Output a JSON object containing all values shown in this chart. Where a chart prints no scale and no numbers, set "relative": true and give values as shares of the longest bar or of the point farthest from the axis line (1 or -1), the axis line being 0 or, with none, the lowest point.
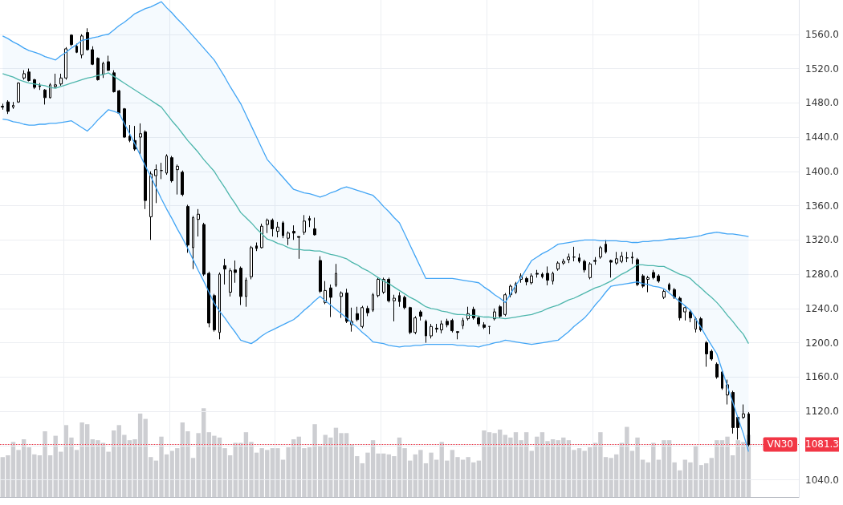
{
  "chart_data": [
    {
      "type": "candlestick",
      "categories": [
        null,
        null,
        null,
        null,
        null,
        null,
        null,
        null,
        null,
        null,
        null,
        null,
        null,
        null,
        null,
        null,
        null,
        null,
        null,
        null,
        null,
        null,
        null,
        null,
        null,
        null,
        null,
        null,
        null,
        null,
        null,
        null,
        null,
        null,
        null,
        null,
        null,
        null,
        null,
        null,
        null,
        null,
        null,
        null,
        null,
        null,
        null,
        null,
        null,
        null,
        null,
        null,
        null,
        null,
        null,
        null,
        null,
        null,
        null,
        null,
        null,
        null,
        null,
        null,
        null,
        null,
        null,
        null,
        null,
        null,
        null,
        null,
        null,
        null,
        null,
        null,
        null,
        null,
        null,
        null,
        null,
        null,
        null,
        null,
        null,
        null,
        null,
        null,
        null,
        null,
        null,
        null,
        null,
        null,
        null,
        null,
        null,
        null,
        null,
        null,
        null,
        null,
        null,
        null,
        null,
        null,
        null,
        null,
        null,
        null,
        null,
        null,
        null,
        null,
        null,
        null,
        null,
        null,
        null,
        null,
        null,
        null,
        null,
        null,
        null,
        null,
        null,
        null,
        null,
        null,
        null,
        null,
        null,
        null,
        null,
        null,
        null,
        null,
        null,
        null,
        null,
        null
      ],
      "ohlc": [
        [
          1476,
          1479,
          1472,
          1475
        ],
        [
          1481,
          1483,
          1467,
          1470
        ],
        [
          1475,
          1481,
          1473,
          1477
        ],
        [
          1481,
          1504,
          1480,
          1503
        ],
        [
          1509,
          1518,
          1507,
          1514
        ],
        [
          1516,
          1520,
          1505,
          1506
        ],
        [
          1507,
          1508,
          1496,
          1498
        ],
        [
          1500,
          1503,
          1495,
          1499
        ],
        [
          1495,
          1496,
          1478,
          1486
        ],
        [
          1486,
          1503,
          1485,
          1501
        ],
        [
          1499,
          1514,
          1497,
          1501
        ],
        [
          1502,
          1514,
          1500,
          1509
        ],
        [
          1509,
          1545,
          1507,
          1543
        ],
        [
          1559,
          1560,
          1546,
          1548
        ],
        [
          1546,
          1549,
          1538,
          1539
        ],
        [
          1536,
          1560,
          1532,
          1558
        ],
        [
          1562,
          1567,
          1541,
          1542
        ],
        [
          1542,
          1546,
          1524,
          1525
        ],
        [
          1532,
          1533,
          1506,
          1507
        ],
        [
          1513,
          1528,
          1509,
          1526
        ],
        [
          1528,
          1535,
          1517,
          1518
        ],
        [
          1515,
          1518,
          1492,
          1493
        ],
        [
          1494,
          1495,
          1466,
          1468
        ],
        [
          1473,
          1474,
          1439,
          1440
        ],
        [
          1441,
          1454,
          1434,
          1436
        ],
        [
          1436,
          1453,
          1424,
          1426
        ],
        [
          1440,
          1456,
          1419,
          1444
        ],
        [
          1446,
          1448,
          1356,
          1366
        ],
        [
          1347,
          1400,
          1320,
          1397
        ],
        [
          1395,
          1408,
          1363,
          1402
        ],
        [
          1401,
          1410,
          1391,
          1401
        ],
        [
          1398,
          1420,
          1396,
          1418
        ],
        [
          1416,
          1418,
          1387,
          1389
        ],
        [
          1402,
          1408,
          1373,
          1406
        ],
        [
          1399,
          1401,
          1371,
          1373
        ],
        [
          1359,
          1361,
          1305,
          1314
        ],
        [
          1311,
          1348,
          1286,
          1346
        ],
        [
          1344,
          1356,
          1324,
          1350
        ],
        [
          1338,
          1340,
          1278,
          1280
        ],
        [
          1281,
          1283,
          1218,
          1223
        ],
        [
          1255,
          1257,
          1213,
          1215
        ],
        [
          1212,
          1282,
          1204,
          1280
        ],
        [
          1290,
          1298,
          1268,
          1286
        ],
        [
          1259,
          1287,
          1254,
          1284
        ],
        [
          1285,
          1296,
          1270,
          1282
        ],
        [
          1287,
          1289,
          1244,
          1254
        ],
        [
          1254,
          1276,
          1242,
          1273
        ],
        [
          1277,
          1313,
          1274,
          1311
        ],
        [
          1313,
          1317,
          1307,
          1310
        ],
        [
          1311,
          1339,
          1310,
          1336
        ],
        [
          1338,
          1345,
          1328,
          1343
        ],
        [
          1343,
          1345,
          1324,
          1333
        ],
        [
          1330,
          1341,
          1323,
          1335
        ],
        [
          1340,
          1342,
          1322,
          1325
        ],
        [
          1322,
          1330,
          1314,
          1328
        ],
        [
          1330,
          1337,
          1320,
          1328
        ],
        [
          1324,
          1324,
          1298,
          1323
        ],
        [
          1329,
          1349,
          1326,
          1342
        ],
        [
          1345,
          1348,
          1335,
          1343
        ],
        [
          1333,
          1346,
          1325,
          1326
        ],
        [
          1296,
          1301,
          1258,
          1260
        ],
        [
          1247,
          1272,
          1245,
          1261
        ],
        [
          1264,
          1268,
          1230,
          1253
        ],
        [
          1267,
          1292,
          1265,
          1281
        ],
        [
          1254,
          1260,
          1229,
          1258
        ],
        [
          1258,
          1263,
          1223,
          1225
        ],
        [
          1221,
          1241,
          1213,
          1225
        ],
        [
          1234,
          1242,
          1225,
          1227
        ],
        [
          1219,
          1243,
          1217,
          1241
        ],
        [
          1240,
          1243,
          1231,
          1235
        ],
        [
          1238,
          1258,
          1236,
          1256
        ],
        [
          1255,
          1276,
          1253,
          1274
        ],
        [
          1259,
          1276,
          1257,
          1274
        ],
        [
          1274,
          1276,
          1247,
          1249
        ],
        [
          1249,
          1256,
          1225,
          1252
        ],
        [
          1255,
          1259,
          1242,
          1248
        ],
        [
          1253,
          1255,
          1239,
          1241
        ],
        [
          1241,
          1242,
          1210,
          1212
        ],
        [
          1212,
          1231,
          1210,
          1229
        ],
        [
          1236,
          1238,
          1226,
          1231
        ],
        [
          1225,
          1227,
          1200,
          1208
        ],
        [
          1208,
          1222,
          1205,
          1219
        ],
        [
          1217,
          1222,
          1212,
          1216
        ],
        [
          1215,
          1226,
          1211,
          1222
        ],
        [
          1225,
          1228,
          1218,
          1221
        ],
        [
          1226,
          1228,
          1212,
          1214
        ],
        [
          1213,
          1213,
          1204,
          1212
        ],
        [
          1220,
          1229,
          1216,
          1226
        ],
        [
          1228,
          1242,
          1226,
          1234
        ],
        [
          1239,
          1242,
          1227,
          1229
        ],
        [
          1229,
          1231,
          1219,
          1222
        ],
        [
          1221,
          1224,
          1216,
          1218
        ],
        [
          1219,
          1219,
          1210,
          1219
        ],
        [
          1228,
          1240,
          1226,
          1236
        ],
        [
          1242,
          1244,
          1229,
          1231
        ],
        [
          1233,
          1258,
          1231,
          1256
        ],
        [
          1256,
          1268,
          1253,
          1266
        ],
        [
          1259,
          1271,
          1257,
          1269
        ],
        [
          1274,
          1281,
          1270,
          1278
        ],
        [
          1275,
          1277,
          1267,
          1271
        ],
        [
          1270,
          1281,
          1268,
          1278
        ],
        [
          1281,
          1285,
          1276,
          1280
        ],
        [
          1280,
          1282,
          1275,
          1277
        ],
        [
          1281,
          1289,
          1267,
          1273
        ],
        [
          1272,
          1283,
          1268,
          1281
        ],
        [
          1286,
          1295,
          1284,
          1293
        ],
        [
          1293,
          1298,
          1291,
          1295
        ],
        [
          1297,
          1304,
          1293,
          1300
        ],
        [
          1300,
          1312,
          1295,
          1300
        ],
        [
          1299,
          1304,
          1293,
          1295
        ],
        [
          1295,
          1297,
          1282,
          1285
        ],
        [
          1276,
          1294,
          1274,
          1292
        ],
        [
          1296,
          1300,
          1291,
          1295
        ],
        [
          1300,
          1313,
          1298,
          1311
        ],
        [
          1315,
          1320,
          1304,
          1306
        ],
        [
          1296,
          1297,
          1276,
          1294
        ],
        [
          1293,
          1306,
          1291,
          1298
        ],
        [
          1295,
          1306,
          1293,
          1301
        ],
        [
          1299,
          1306,
          1294,
          1299
        ],
        [
          1300,
          1306,
          1292,
          1299
        ],
        [
          1297,
          1299,
          1266,
          1268
        ],
        [
          1278,
          1280,
          1264,
          1266
        ],
        [
          1274,
          1278,
          1259,
          1276
        ],
        [
          1282,
          1285,
          1274,
          1276
        ],
        [
          1278,
          1280,
          1270,
          1272
        ],
        [
          1253,
          1262,
          1251,
          1260
        ],
        [
          1268,
          1270,
          1260,
          1262
        ],
        [
          1262,
          1264,
          1251,
          1253
        ],
        [
          1252,
          1254,
          1226,
          1229
        ],
        [
          1236,
          1243,
          1226,
          1241
        ],
        [
          1236,
          1238,
          1224,
          1229
        ],
        [
          1216,
          1230,
          1212,
          1228
        ],
        [
          1228,
          1230,
          1213,
          1215
        ],
        [
          1200,
          1202,
          1172,
          1187
        ],
        [
          1190,
          1192,
          1179,
          1181
        ],
        [
          1175,
          1177,
          1158,
          1160
        ],
        [
          1166,
          1168,
          1145,
          1147
        ],
        [
          1139,
          1157,
          1128,
          1151
        ],
        [
          1142,
          1144,
          1094,
          1101
        ],
        [
          1113,
          1115,
          1087,
          1101
        ],
        [
          1113,
          1128,
          1111,
          1117
        ],
        [
          1117,
          1119,
          1079,
          1081
        ]
      ],
      "series": [
        {
          "type": "line",
          "color": "#4db6ac",
          "values": [
            1514,
            1512,
            1510,
            1507,
            1505,
            1503,
            1502,
            1501,
            1500,
            1498,
            1497,
            1499,
            1501,
            1503,
            1505,
            1507,
            1509,
            1510,
            1512,
            1513,
            1515,
            1511,
            1507,
            1503,
            1499,
            1495,
            1491,
            1487,
            1483,
            1479,
            1475,
            1467,
            1459,
            1452,
            1444,
            1436,
            1429,
            1422,
            1414,
            1407,
            1400,
            1390,
            1381,
            1371,
            1362,
            1352,
            1346,
            1340,
            1333,
            1327,
            1321,
            1319,
            1316,
            1314,
            1311,
            1309,
            1309,
            1308,
            1308,
            1307,
            1307,
            1305,
            1303,
            1302,
            1300,
            1298,
            1294,
            1291,
            1287,
            1284,
            1280,
            1276,
            1272,
            1269,
            1265,
            1261,
            1257,
            1253,
            1250,
            1246,
            1242,
            1240,
            1239,
            1237,
            1236,
            1234,
            1233,
            1233,
            1232,
            1232,
            1231,
            1230,
            1230,
            1229,
            1229,
            1228,
            1229,
            1230,
            1231,
            1232,
            1233,
            1235,
            1237,
            1240,
            1242,
            1244,
            1247,
            1250,
            1252,
            1255,
            1258,
            1261,
            1264,
            1266,
            1269,
            1272,
            1276,
            1280,
            1283,
            1287,
            1291,
            1291,
            1290,
            1290,
            1289,
            1289,
            1286,
            1283,
            1280,
            1278,
            1275,
            1269,
            1264,
            1258,
            1253,
            1247,
            1240,
            1232,
            1225,
            1217,
            1210,
            1199
          ],
          "lower": [
            1461,
            1460,
            1458,
            1457,
            1455,
            1454,
            1454,
            1455,
            1455,
            1456,
            1456,
            1457,
            1458,
            1459,
            1455,
            1451,
            1447,
            1453,
            1460,
            1466,
            1472,
            1470,
            1468,
            1456,
            1444,
            1432,
            1419,
            1406,
            1394,
            1381,
            1368,
            1356,
            1345,
            1333,
            1322,
            1310,
            1297,
            1284,
            1272,
            1259,
            1246,
            1237,
            1229,
            1220,
            1212,
            1203,
            1201,
            1199,
            1203,
            1208,
            1212,
            1215,
            1218,
            1221,
            1224,
            1227,
            1232,
            1238,
            1243,
            1249,
            1254,
            1249,
            1244,
            1239,
            1234,
            1229,
            1223,
            1218,
            1212,
            1207,
            1201,
            1200,
            1199,
            1197,
            1196,
            1195,
            1196,
            1196,
            1197,
            1197,
            1198,
            1198,
            1198,
            1198,
            1198,
            1198,
            1197,
            1197,
            1196,
            1196,
            1195,
            1197,
            1198,
            1200,
            1201,
            1203,
            1202,
            1201,
            1200,
            1199,
            1198,
            1199,
            1200,
            1201,
            1202,
            1203,
            1208,
            1213,
            1219,
            1224,
            1229,
            1236,
            1244,
            1251,
            1259,
            1266,
            1267,
            1268,
            1269,
            1270,
            1271,
            1269,
            1268,
            1266,
            1265,
            1263,
            1258,
            1253,
            1248,
            1243,
            1238,
            1228,
            1218,
            1207,
            1197,
            1187,
            1168,
            1149,
            1131,
            1112,
            1094,
            1073
          ],
          "upper": [
            1558,
            1555,
            1551,
            1548,
            1544,
            1541,
            1539,
            1537,
            1534,
            1532,
            1530,
            1535,
            1539,
            1544,
            1548,
            1553,
            1554,
            1556,
            1557,
            1559,
            1560,
            1565,
            1570,
            1574,
            1579,
            1584,
            1587,
            1590,
            1592,
            1595,
            1598,
            1591,
            1585,
            1578,
            1572,
            1565,
            1558,
            1551,
            1544,
            1537,
            1530,
            1520,
            1510,
            1499,
            1489,
            1479,
            1466,
            1453,
            1440,
            1427,
            1414,
            1407,
            1400,
            1393,
            1386,
            1379,
            1377,
            1375,
            1374,
            1372,
            1370,
            1372,
            1375,
            1377,
            1380,
            1382,
            1380,
            1378,
            1376,
            1374,
            1372,
            1366,
            1359,
            1353,
            1346,
            1340,
            1327,
            1314,
            1301,
            1288,
            1275,
            1275,
            1275,
            1275,
            1275,
            1275,
            1274,
            1273,
            1272,
            1271,
            1270,
            1265,
            1261,
            1256,
            1252,
            1247,
            1257,
            1267,
            1276,
            1286,
            1296,
            1300,
            1304,
            1307,
            1311,
            1315,
            1316,
            1317,
            1318,
            1319,
            1320,
            1320,
            1320,
            1319,
            1319,
            1319,
            1319,
            1318,
            1318,
            1317,
            1317,
            1318,
            1318,
            1319,
            1319,
            1320,
            1321,
            1321,
            1322,
            1322,
            1323,
            1324,
            1325,
            1327,
            1328,
            1329,
            1328,
            1327,
            1327,
            1326,
            1325,
            1324
          ]
        },
        {
          "type": "line",
          "color": "#42a5f5",
          "values": [
            1558,
            1555,
            1551,
            1548,
            1544,
            1541,
            1539,
            1537,
            1534,
            1532,
            1530,
            1535,
            1539,
            1544,
            1548,
            1553,
            1554,
            1556,
            1557,
            1559,
            1560,
            1565,
            1570,
            1574,
            1579,
            1584,
            1587,
            1590,
            1592,
            1595,
            1598,
            1591,
            1585,
            1578,
            1572,
            1565,
            1558,
            1551,
            1544,
            1537,
            1530,
            1520,
            1510,
            1499,
            1489,
            1479,
            1466,
            1453,
            1440,
            1427,
            1414,
            1407,
            1400,
            1393,
            1386,
            1379,
            1377,
            1375,
            1374,
            1372,
            1370,
            1372,
            1375,
            1377,
            1380,
            1382,
            1380,
            1378,
            1376,
            1374,
            1372,
            1366,
            1359,
            1353,
            1346,
            1340,
            1327,
            1314,
            1301,
            1288,
            1275,
            1275,
            1275,
            1275,
            1275,
            1275,
            1274,
            1273,
            1272,
            1271,
            1270,
            1265,
            1261,
            1256,
            1252,
            1247,
            1257,
            1267,
            1276,
            1286,
            1296,
            1300,
            1304,
            1307,
            1311,
            1315,
            1316,
            1317,
            1318,
            1319,
            1320,
            1320,
            1320,
            1319,
            1319,
            1319,
            1319,
            1318,
            1318,
            1317,
            1317,
            1318,
            1318,
            1319,
            1319,
            1320,
            1321,
            1321,
            1322,
            1322,
            1323,
            1324,
            1325,
            1327,
            1328,
            1329,
            1328,
            1327,
            1327,
            1326,
            1325,
            1324
          ]
        },
        {
          "type": "line",
          "color": "#42a5f5",
          "values": [
            1461,
            1460,
            1458,
            1457,
            1455,
            1454,
            1454,
            1455,
            1455,
            1456,
            1456,
            1457,
            1458,
            1459,
            1455,
            1451,
            1447,
            1453,
            1460,
            1466,
            1472,
            1470,
            1468,
            1456,
            1444,
            1432,
            1419,
            1406,
            1394,
            1381,
            1368,
            1356,
            1345,
            1333,
            1322,
            1310,
            1297,
            1284,
            1272,
            1259,
            1246,
            1237,
            1229,
            1220,
            1212,
            1203,
            1201,
            1199,
            1203,
            1208,
            1212,
            1215,
            1218,
            1221,
            1224,
            1227,
            1232,
            1238,
            1243,
            1249,
            1254,
            1249,
            1244,
            1239,
            1234,
            1229,
            1223,
            1218,
            1212,
            1207,
            1201,
            1200,
            1199,
            1197,
            1196,
            1195,
            1196,
            1196,
            1197,
            1197,
            1198,
            1198,
            1198,
            1198,
            1198,
            1198,
            1197,
            1197,
            1196,
            1196,
            1195,
            1197,
            1198,
            1200,
            1201,
            1203,
            1202,
            1201,
            1200,
            1199,
            1198,
            1199,
            1200,
            1201,
            1202,
            1203,
            1208,
            1213,
            1219,
            1224,
            1229,
            1236,
            1244,
            1251,
            1259,
            1266,
            1267,
            1268,
            1269,
            1270,
            1271,
            1269,
            1268,
            1266,
            1265,
            1263,
            1258,
            1253,
            1248,
            1243,
            1238,
            1228,
            1218,
            1207,
            1197,
            1187,
            1168,
            1149,
            1131,
            1112,
            1094,
            1073
          ]
        }
      ],
      "ylim": [
        1020,
        1600
      ],
      "yticks": [
        {
          "value": 1040,
          "label": "1040.0"
        },
        {
          "value": 1080,
          "label": null
        },
        {
          "value": 1081.3,
          "label": "1081.3"
        },
        {
          "value": 1120,
          "label": "1120.0"
        },
        {
          "value": 1160,
          "label": "1160.0"
        },
        {
          "value": 1200,
          "label": "1200.0"
        },
        {
          "value": 1240,
          "label": "1240.0"
        },
        {
          "value": 1280,
          "label": "1280.0"
        },
        {
          "value": 1320,
          "label": "1320.0"
        },
        {
          "value": 1360,
          "label": "1360.0"
        },
        {
          "value": 1400,
          "label": "1400.0"
        },
        {
          "value": 1440,
          "label": "1440.0"
        },
        {
          "value": 1480,
          "label": "1480.0"
        },
        {
          "value": 1520,
          "label": "1520.0"
        },
        {
          "value": 1560,
          "label": "1560.0"
        }
      ],
      "ref_lines": [
        {
          "axis": "y",
          "value": 1081.3,
          "label": "VN30",
          "color": "#f23645",
          "line_style": "dotted"
        }
      ],
      "grid": true,
      "tick_labels": "y"
    },
    {
      "type": "bar",
      "relative": true,
      "color": "#cdced2",
      "categories": [
        null,
        null,
        null,
        null,
        null,
        null,
        null,
        null,
        null,
        null,
        null,
        null,
        null,
        null,
        null,
        null,
        null,
        null,
        null,
        null,
        null,
        null,
        null,
        null,
        null,
        null,
        null,
        null,
        null,
        null,
        null,
        null,
        null,
        null,
        null,
        null,
        null,
        null,
        null,
        null,
        null,
        null,
        null,
        null,
        null,
        null,
        null,
        null,
        null,
        null,
        null,
        null,
        null,
        null,
        null,
        null,
        null,
        null,
        null,
        null,
        null,
        null,
        null,
        null,
        null,
        null,
        null,
        null,
        null,
        null,
        null,
        null,
        null,
        null,
        null,
        null,
        null,
        null,
        null,
        null,
        null,
        null,
        null,
        null,
        null,
        null,
        null,
        null,
        null,
        null,
        null,
        null,
        null,
        null,
        null,
        null,
        null,
        null,
        null,
        null,
        null,
        null,
        null,
        null,
        null,
        null,
        null,
        null,
        null,
        null,
        null,
        null,
        null,
        null,
        null,
        null,
        null,
        null,
        null,
        null,
        null,
        null,
        null,
        null,
        null,
        null,
        null,
        null,
        null,
        null,
        null,
        null,
        null,
        null,
        null,
        null,
        null,
        null,
        null,
        null,
        null,
        null
      ],
      "values": [
        0.45,
        0.47,
        0.62,
        0.53,
        0.65,
        0.56,
        0.48,
        0.47,
        0.74,
        0.47,
        0.69,
        0.51,
        0.81,
        0.67,
        0.53,
        0.84,
        0.82,
        0.65,
        0.64,
        0.61,
        0.51,
        0.75,
        0.81,
        0.7,
        0.64,
        0.65,
        0.94,
        0.88,
        0.45,
        0.41,
        0.68,
        0.48,
        0.52,
        0.55,
        0.84,
        0.74,
        0.44,
        0.72,
        1,
        0.73,
        0.69,
        0.67,
        0.55,
        0.47,
        0.61,
        0.61,
        0.73,
        0.62,
        0.5,
        0.55,
        0.53,
        0.55,
        0.55,
        0.42,
        0.56,
        0.65,
        0.68,
        0.55,
        0.56,
        0.82,
        0.58,
        0.7,
        0.67,
        0.78,
        0.72,
        0.72,
        0.59,
        0.46,
        0.38,
        0.5,
        0.64,
        0.49,
        0.49,
        0.48,
        0.46,
        0.67,
        0.55,
        0.41,
        0.48,
        0.53,
        0.38,
        0.5,
        0.42,
        0.62,
        0.41,
        0.53,
        0.45,
        0.42,
        0.45,
        0.39,
        0.41,
        0.75,
        0.73,
        0.72,
        0.76,
        0.7,
        0.67,
        0.73,
        0.64,
        0.73,
        0.52,
        0.68,
        0.73,
        0.63,
        0.65,
        0.64,
        0.67,
        0.64,
        0.53,
        0.55,
        0.52,
        0.56,
        0.61,
        0.73,
        0.45,
        0.44,
        0.48,
        0.61,
        0.79,
        0.52,
        0.67,
        0.42,
        0.39,
        0.61,
        0.42,
        0.64,
        0.64,
        0.39,
        0.3,
        0.42,
        0.39,
        0.58,
        0.36,
        0.38,
        0.44,
        0.64,
        0.64,
        0.68,
        0.47,
        0.64,
        0.62,
        0.7
      ]
    }
  ]
}
